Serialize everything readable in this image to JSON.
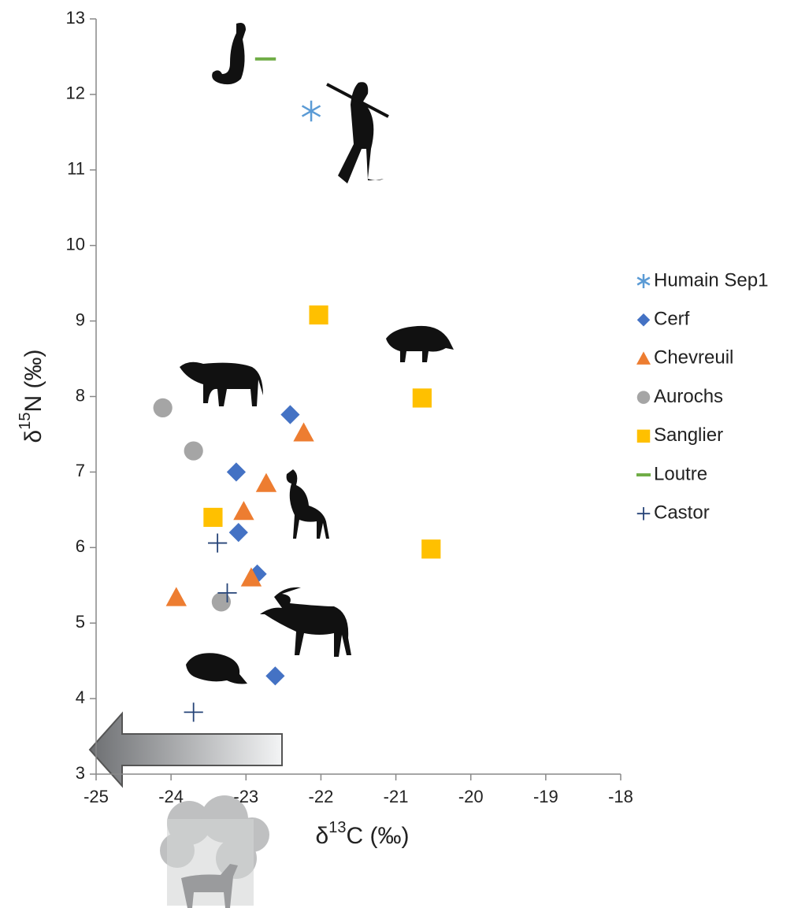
{
  "chart_data": {
    "type": "scatter",
    "xlabel": [
      "δ",
      "13",
      "C (‰)"
    ],
    "ylabel": [
      "δ",
      "15",
      "N (‰)"
    ],
    "xlim": [
      -25,
      -18
    ],
    "ylim": [
      3,
      13
    ],
    "xticks": [
      -25,
      -24,
      -23,
      -22,
      -21,
      -20,
      -19,
      -18
    ],
    "yticks": [
      3,
      4,
      5,
      6,
      7,
      8,
      9,
      10,
      11,
      12,
      13
    ],
    "grid": false,
    "series": [
      {
        "name": "Humain Sep1",
        "color": "#5b9bd5",
        "marker": "star",
        "x": [
          -22.13
        ],
        "y": [
          11.78
        ]
      },
      {
        "name": "Cerf",
        "color": "#4472c4",
        "marker": "diamond",
        "x": [
          -22.41,
          -23.13,
          -23.1,
          -22.85,
          -22.61
        ],
        "y": [
          7.76,
          7.0,
          6.2,
          5.65,
          4.3
        ]
      },
      {
        "name": "Chevreuil",
        "color": "#ed7d31",
        "marker": "triangle",
        "x": [
          -22.23,
          -22.73,
          -23.03,
          -22.93,
          -23.93
        ],
        "y": [
          7.52,
          6.85,
          6.48,
          5.6,
          5.34
        ]
      },
      {
        "name": "Aurochs",
        "color": "#a5a5a5",
        "marker": "circle",
        "x": [
          -24.11,
          -23.7,
          -23.33
        ],
        "y": [
          7.85,
          7.28,
          5.28
        ]
      },
      {
        "name": "Sanglier",
        "color": "#ffc000",
        "marker": "square",
        "x": [
          -22.03,
          -20.65,
          -20.53,
          -23.44
        ],
        "y": [
          9.08,
          7.98,
          5.98,
          6.4
        ]
      },
      {
        "name": "Loutre",
        "color": "#70ad47",
        "marker": "dash",
        "x": [
          -22.74
        ],
        "y": [
          12.47
        ]
      },
      {
        "name": "Castor",
        "color": "#264478",
        "marker": "plus",
        "x": [
          -23.38,
          -23.25,
          -23.7
        ],
        "y": [
          6.06,
          5.4,
          3.82
        ]
      }
    ]
  }
}
